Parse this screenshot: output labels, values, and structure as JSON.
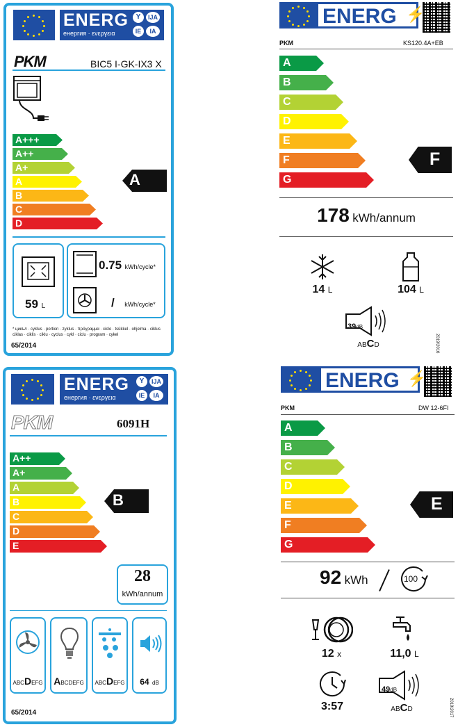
{
  "oven": {
    "energy": "ENERG",
    "sub": "енергия · ενεργεια",
    "codes": [
      "Y",
      "IJA",
      "IE",
      "IA"
    ],
    "brand": "PKM",
    "model": "BIC5 I-GK-IX3 X",
    "classes": [
      "A+++",
      "A++",
      "A+",
      "A",
      "B",
      "C",
      "D"
    ],
    "colors": [
      "#0a9a46",
      "#45b04a",
      "#b3d234",
      "#fff200",
      "#fcb716",
      "#f07e22",
      "#e41e25"
    ],
    "rating": "A",
    "volume": "59",
    "volume_unit": "L",
    "conv_value": "0.75",
    "conv_unit": "kWh/cycle*",
    "fan_value": "/",
    "fan_unit": "kWh/cycle*",
    "footnote": "* цикъл · cyklus · portion · zyklus · πρόγραμμα · ciclo · tsükkel · ohjelma · ciklus ciklas · ciklis · ciklu · cyclus · cykl · ciclu · program · cykel",
    "reg": "65/2014"
  },
  "hood": {
    "energy": "ENERG",
    "sub": "енергия · ενεργεια",
    "codes": [
      "Y",
      "IJA",
      "IE",
      "IA"
    ],
    "brand": "PKM",
    "model": "6091H",
    "classes": [
      "A++",
      "A+",
      "A",
      "B",
      "C",
      "D",
      "E"
    ],
    "colors": [
      "#0a9a46",
      "#45b04a",
      "#b3d234",
      "#fff200",
      "#fcb716",
      "#f07e22",
      "#e41e25"
    ],
    "rating": "B",
    "consumption": "28",
    "consumption_unit": "kWh/annum",
    "fan_class": {
      "pre": "ABC",
      "big": "D",
      "post": "EFG"
    },
    "light_class": {
      "pre": "",
      "big": "A",
      "post": "BCDEFG"
    },
    "grease_class": {
      "pre": "ABC",
      "big": "D",
      "post": "EFG"
    },
    "noise": "64",
    "noise_unit": "dB",
    "reg": "65/2014"
  },
  "fridge": {
    "energy": "ENERG",
    "brand": "PKM",
    "model": "KS120.4A+EB",
    "classes": [
      "A",
      "B",
      "C",
      "D",
      "E",
      "F",
      "G"
    ],
    "colors": [
      "#0a9a46",
      "#45b04a",
      "#b3d234",
      "#fff200",
      "#fcb716",
      "#f07e22",
      "#e41e25"
    ],
    "rating": "F",
    "consumption": "178",
    "consumption_unit": "kWh/annum",
    "freezer": "14",
    "freezer_unit": "L",
    "fresh": "104",
    "fresh_unit": "L",
    "noise": "39",
    "noise_unit": "dB",
    "noise_class": {
      "pre": "AB",
      "big": "C",
      "post": "D"
    },
    "reg": "2019/2016"
  },
  "dishwasher": {
    "energy": "ENERG",
    "brand": "PKM",
    "model": "DW 12-6FI",
    "classes": [
      "A",
      "B",
      "C",
      "D",
      "E",
      "F",
      "G"
    ],
    "colors": [
      "#0a9a46",
      "#45b04a",
      "#b3d234",
      "#fff200",
      "#fcb716",
      "#f07e22",
      "#e41e25"
    ],
    "rating": "E",
    "consumption": "92",
    "consumption_unit": "kWh",
    "cycles": "100",
    "settings": "12",
    "settings_unit": "x",
    "water": "11,0",
    "water_unit": "L",
    "duration": "3:57",
    "noise": "49",
    "noise_unit": "dB",
    "noise_class": {
      "pre": "AB",
      "big": "C",
      "post": "D"
    },
    "reg": "2019/2017"
  }
}
